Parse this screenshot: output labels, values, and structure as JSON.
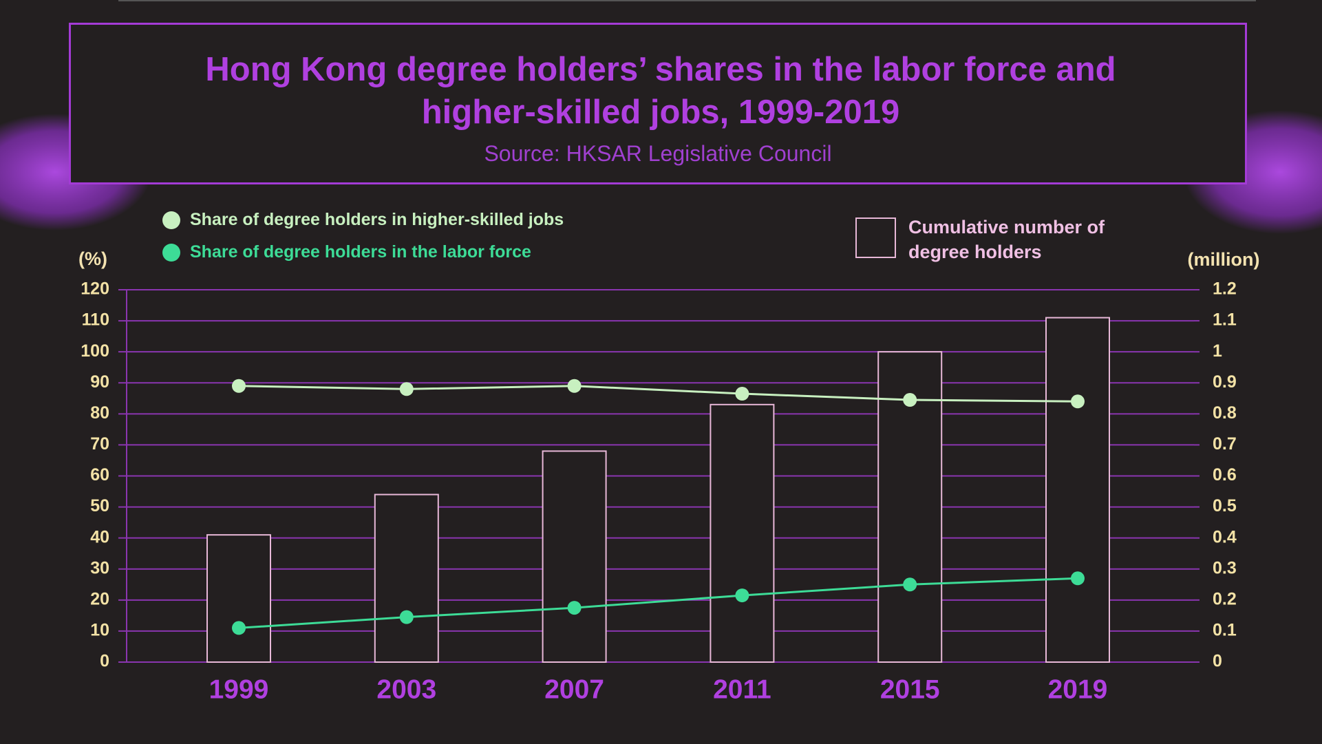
{
  "chart_data": {
    "type": "combo",
    "title": "Hong Kong degree holders’ shares in the labor force and higher-skilled jobs, 1999-2019",
    "subtitle": "Source: HKSAR Legislative Council",
    "y_label": "(%)",
    "y2_label": "(million)",
    "categories": [
      "1999",
      "2003",
      "2007",
      "2011",
      "2015",
      "2019"
    ],
    "series": [
      {
        "name": "Cumulative number of degree holders",
        "type": "bar",
        "axis": "y2",
        "color": "#e8b8d8",
        "values": [
          0.41,
          0.54,
          0.68,
          0.83,
          1.0,
          1.11
        ]
      },
      {
        "name": "Share of degree holders in higher-skilled jobs",
        "type": "line",
        "color": "#c8f0c0",
        "values": [
          89,
          88,
          89,
          86.5,
          84.5,
          84
        ]
      },
      {
        "name": "Share of degree holders in the labor force",
        "type": "line",
        "color": "#3ddc97",
        "values": [
          11,
          14.5,
          17.5,
          21.5,
          25,
          27
        ]
      }
    ],
    "ylim": [
      0,
      120
    ],
    "yticks": [
      0,
      10,
      20,
      30,
      40,
      50,
      60,
      70,
      80,
      90,
      100,
      110,
      120
    ],
    "y2lim": [
      0,
      1.2
    ],
    "y2ticks": [
      0,
      0.1,
      0.2,
      0.3,
      0.4,
      0.5,
      0.6,
      0.7,
      0.8,
      0.9,
      1,
      1.1,
      1.2
    ],
    "grid": true
  }
}
